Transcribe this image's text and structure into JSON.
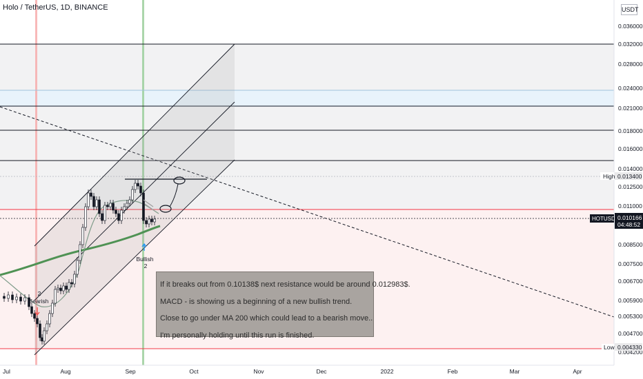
{
  "header": {
    "title": "Holo / TetherUS, 1D, BINANCE",
    "currency_badge": "USDT"
  },
  "note": {
    "lines": [
      "If it breaks out from 0.10138$ next resistance would be around 0.012983$.",
      "MACD - is showing us a beginning of a new bullish trend.",
      "Close to go under MA 200 which could lead to a bearish move..",
      "I'm personally holding until this run is finished."
    ]
  },
  "markers": {
    "bearish": {
      "count": "2",
      "label": "Bearish"
    },
    "bullish": {
      "count": "2",
      "label": "Bullish"
    }
  },
  "price_tags": {
    "high_label": "High",
    "high_value": "0.013400",
    "symbol": "HOTUSDT",
    "last_value": "0.010166",
    "countdown": "04:48:52",
    "low_label": "Low",
    "low_value": "0.004330"
  },
  "chart_data": {
    "type": "candlestick",
    "symbol": "HOTUSDT",
    "timeframe": "1D",
    "exchange": "BINANCE",
    "y_ticks": [
      "0.036000",
      "0.032000",
      "0.028000",
      "0.024000",
      "0.021000",
      "0.018000",
      "0.016000",
      "0.014000",
      "0.012500",
      "0.011000",
      "0.008500",
      "0.007500",
      "0.006700",
      "0.005900",
      "0.005300",
      "0.004700",
      "0.004200"
    ],
    "x_ticks": [
      "Jul",
      "Aug",
      "Sep",
      "Oct",
      "Nov",
      "Dec",
      "2022",
      "Feb",
      "Mar",
      "Apr"
    ],
    "high": 0.0134,
    "low": 0.00433,
    "last": 0.010166,
    "resistance_lines": [
      0.032,
      0.024,
      0.021,
      0.018,
      0.015,
      0.0133
    ],
    "colors": {
      "up": "#26a69a",
      "down": "#ef5350",
      "ma200": "#4f9254",
      "ma_fast": "#7f9c8a",
      "resistance": "#000000",
      "support": "#f23645"
    }
  }
}
